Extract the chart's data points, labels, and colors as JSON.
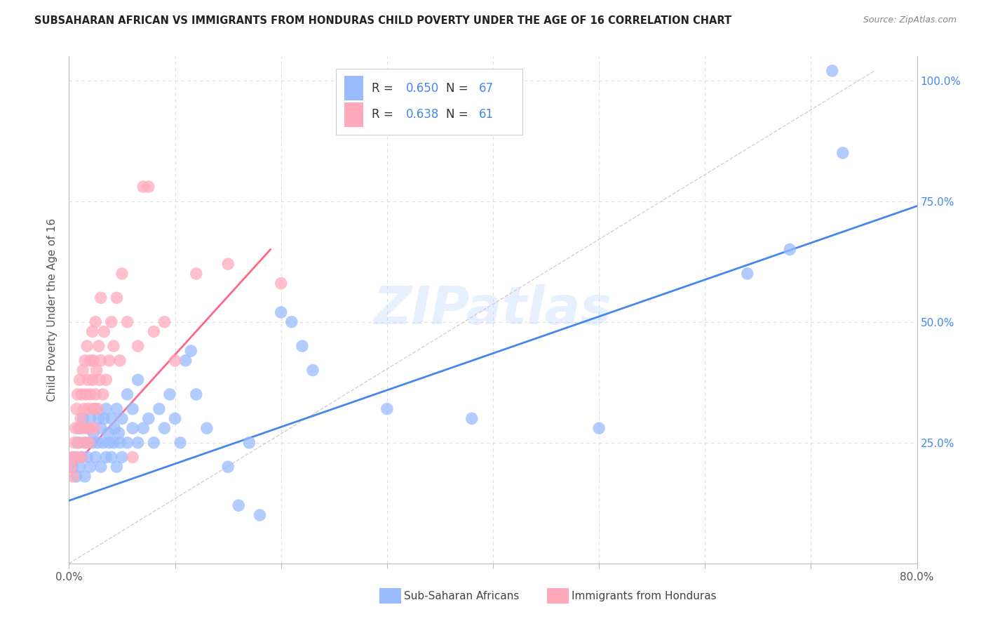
{
  "title": "SUBSAHARAN AFRICAN VS IMMIGRANTS FROM HONDURAS CHILD POVERTY UNDER THE AGE OF 16 CORRELATION CHART",
  "source": "Source: ZipAtlas.com",
  "ylabel": "Child Poverty Under the Age of 16",
  "xmin": 0.0,
  "xmax": 0.8,
  "ymin": 0.0,
  "ymax": 1.05,
  "xticks": [
    0.0,
    0.1,
    0.2,
    0.3,
    0.4,
    0.5,
    0.6,
    0.7,
    0.8
  ],
  "xticklabels": [
    "0.0%",
    "",
    "",
    "",
    "",
    "",
    "",
    "",
    "80.0%"
  ],
  "yticks": [
    0.0,
    0.25,
    0.5,
    0.75,
    1.0
  ],
  "yticklabels": [
    "",
    "25.0%",
    "50.0%",
    "75.0%",
    "100.0%"
  ],
  "grid_color": "#dddddd",
  "background_color": "#ffffff",
  "color_blue": "#99bbff",
  "color_pink": "#ffaabb",
  "color_blue_line": "#4488ee",
  "color_pink_line": "#ff6688",
  "color_blue_text": "#4488ee",
  "watermark": "ZIPatlas",
  "series1_label": "Sub-Saharan Africans",
  "series2_label": "Immigrants from Honduras",
  "blue_dots": [
    [
      0.003,
      0.2
    ],
    [
      0.005,
      0.22
    ],
    [
      0.007,
      0.18
    ],
    [
      0.008,
      0.25
    ],
    [
      0.01,
      0.2
    ],
    [
      0.01,
      0.28
    ],
    [
      0.012,
      0.22
    ],
    [
      0.013,
      0.3
    ],
    [
      0.015,
      0.18
    ],
    [
      0.015,
      0.25
    ],
    [
      0.017,
      0.22
    ],
    [
      0.018,
      0.28
    ],
    [
      0.02,
      0.2
    ],
    [
      0.02,
      0.3
    ],
    [
      0.022,
      0.25
    ],
    [
      0.023,
      0.27
    ],
    [
      0.025,
      0.22
    ],
    [
      0.025,
      0.32
    ],
    [
      0.027,
      0.25
    ],
    [
      0.028,
      0.3
    ],
    [
      0.03,
      0.2
    ],
    [
      0.03,
      0.28
    ],
    [
      0.032,
      0.25
    ],
    [
      0.033,
      0.3
    ],
    [
      0.035,
      0.22
    ],
    [
      0.035,
      0.32
    ],
    [
      0.037,
      0.27
    ],
    [
      0.038,
      0.25
    ],
    [
      0.04,
      0.22
    ],
    [
      0.04,
      0.3
    ],
    [
      0.042,
      0.25
    ],
    [
      0.043,
      0.28
    ],
    [
      0.045,
      0.2
    ],
    [
      0.045,
      0.32
    ],
    [
      0.047,
      0.27
    ],
    [
      0.048,
      0.25
    ],
    [
      0.05,
      0.22
    ],
    [
      0.05,
      0.3
    ],
    [
      0.055,
      0.25
    ],
    [
      0.055,
      0.35
    ],
    [
      0.06,
      0.28
    ],
    [
      0.06,
      0.32
    ],
    [
      0.065,
      0.25
    ],
    [
      0.065,
      0.38
    ],
    [
      0.07,
      0.28
    ],
    [
      0.075,
      0.3
    ],
    [
      0.08,
      0.25
    ],
    [
      0.085,
      0.32
    ],
    [
      0.09,
      0.28
    ],
    [
      0.095,
      0.35
    ],
    [
      0.1,
      0.3
    ],
    [
      0.105,
      0.25
    ],
    [
      0.11,
      0.42
    ],
    [
      0.115,
      0.44
    ],
    [
      0.12,
      0.35
    ],
    [
      0.13,
      0.28
    ],
    [
      0.15,
      0.2
    ],
    [
      0.16,
      0.12
    ],
    [
      0.17,
      0.25
    ],
    [
      0.18,
      0.1
    ],
    [
      0.2,
      0.52
    ],
    [
      0.21,
      0.5
    ],
    [
      0.22,
      0.45
    ],
    [
      0.23,
      0.4
    ],
    [
      0.3,
      0.32
    ],
    [
      0.38,
      0.3
    ],
    [
      0.5,
      0.28
    ],
    [
      0.64,
      0.6
    ],
    [
      0.68,
      0.65
    ],
    [
      0.72,
      1.02
    ],
    [
      0.73,
      0.85
    ]
  ],
  "pink_dots": [
    [
      0.002,
      0.2
    ],
    [
      0.003,
      0.22
    ],
    [
      0.004,
      0.18
    ],
    [
      0.005,
      0.25
    ],
    [
      0.006,
      0.28
    ],
    [
      0.007,
      0.32
    ],
    [
      0.008,
      0.22
    ],
    [
      0.008,
      0.35
    ],
    [
      0.009,
      0.28
    ],
    [
      0.01,
      0.25
    ],
    [
      0.01,
      0.38
    ],
    [
      0.011,
      0.3
    ],
    [
      0.012,
      0.22
    ],
    [
      0.012,
      0.35
    ],
    [
      0.013,
      0.4
    ],
    [
      0.013,
      0.28
    ],
    [
      0.014,
      0.32
    ],
    [
      0.015,
      0.25
    ],
    [
      0.015,
      0.42
    ],
    [
      0.016,
      0.35
    ],
    [
      0.017,
      0.28
    ],
    [
      0.017,
      0.45
    ],
    [
      0.018,
      0.32
    ],
    [
      0.018,
      0.38
    ],
    [
      0.019,
      0.25
    ],
    [
      0.02,
      0.35
    ],
    [
      0.02,
      0.42
    ],
    [
      0.021,
      0.28
    ],
    [
      0.022,
      0.38
    ],
    [
      0.022,
      0.48
    ],
    [
      0.023,
      0.32
    ],
    [
      0.023,
      0.42
    ],
    [
      0.024,
      0.28
    ],
    [
      0.025,
      0.35
    ],
    [
      0.025,
      0.5
    ],
    [
      0.026,
      0.4
    ],
    [
      0.027,
      0.32
    ],
    [
      0.028,
      0.45
    ],
    [
      0.029,
      0.38
    ],
    [
      0.03,
      0.42
    ],
    [
      0.03,
      0.55
    ],
    [
      0.032,
      0.35
    ],
    [
      0.033,
      0.48
    ],
    [
      0.035,
      0.38
    ],
    [
      0.038,
      0.42
    ],
    [
      0.04,
      0.5
    ],
    [
      0.042,
      0.45
    ],
    [
      0.045,
      0.55
    ],
    [
      0.048,
      0.42
    ],
    [
      0.05,
      0.6
    ],
    [
      0.055,
      0.5
    ],
    [
      0.06,
      0.22
    ],
    [
      0.065,
      0.45
    ],
    [
      0.07,
      0.78
    ],
    [
      0.075,
      0.78
    ],
    [
      0.08,
      0.48
    ],
    [
      0.09,
      0.5
    ],
    [
      0.1,
      0.42
    ],
    [
      0.12,
      0.6
    ],
    [
      0.15,
      0.62
    ],
    [
      0.2,
      0.58
    ]
  ],
  "blue_line_x": [
    0.0,
    0.8
  ],
  "blue_line_y": [
    0.13,
    0.74
  ],
  "pink_line_x": [
    0.004,
    0.19
  ],
  "pink_line_y": [
    0.2,
    0.65
  ],
  "diag_line_x": [
    0.0,
    0.76
  ],
  "diag_line_y": [
    0.0,
    1.02
  ]
}
